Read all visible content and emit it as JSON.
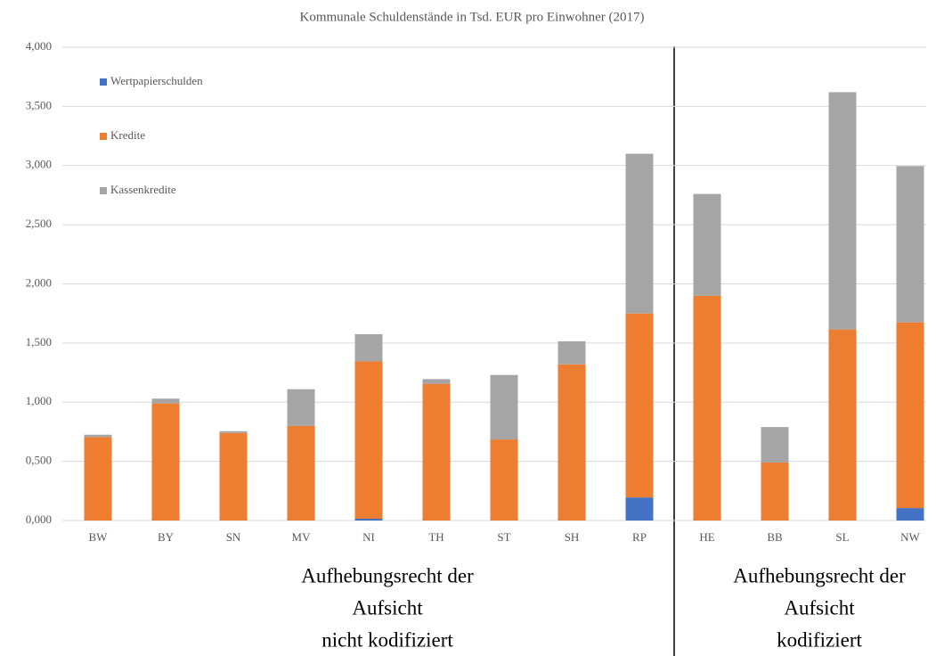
{
  "chart_data": {
    "type": "stacked_bar",
    "title": "Kommunale Schuldenstände in Tsd. EUR pro Einwohner (2017)",
    "categories": [
      "BW",
      "BY",
      "SN",
      "MV",
      "NI",
      "TH",
      "ST",
      "SH",
      "RP",
      "HE",
      "BB",
      "SL",
      "NW"
    ],
    "series": [
      {
        "name": "Wertpapierschulden",
        "color": "#4472c4",
        "values": [
          0,
          0,
          0,
          0,
          0.015,
          0,
          0,
          0,
          0.195,
          0,
          0,
          0,
          0.105
        ]
      },
      {
        "name": "Kredite",
        "color": "#ed7d31",
        "values": [
          0.705,
          0.99,
          0.74,
          0.8,
          1.33,
          1.155,
          0.685,
          1.32,
          1.555,
          1.9,
          0.49,
          1.615,
          1.57
        ]
      },
      {
        "name": "Kassenkredite",
        "color": "#a5a5a5",
        "values": [
          0.02,
          0.04,
          0.015,
          0.31,
          0.23,
          0.04,
          0.545,
          0.195,
          1.35,
          0.86,
          0.3,
          2.005,
          1.32
        ]
      }
    ],
    "ylim": [
      0,
      4
    ],
    "yticks": [
      {
        "value": 0,
        "label": "0,000"
      },
      {
        "value": 0.5,
        "label": "0,500"
      },
      {
        "value": 1,
        "label": "1,000"
      },
      {
        "value": 1.5,
        "label": "1,500"
      },
      {
        "value": 2,
        "label": "2,000"
      },
      {
        "value": 2.5,
        "label": "2,500"
      },
      {
        "value": 3,
        "label": "3,000"
      },
      {
        "value": 3.5,
        "label": "3,500"
      },
      {
        "value": 4,
        "label": "4,000"
      }
    ],
    "grid": true,
    "legend": "upper left",
    "annotations": [
      {
        "lines": [
          "Aufhebungsrecht der",
          "Aufsicht",
          "nicht kodifiziert"
        ]
      },
      {
        "lines": [
          "Aufhebungsrecht der",
          "Aufsicht",
          "kodifiziert"
        ]
      }
    ]
  }
}
